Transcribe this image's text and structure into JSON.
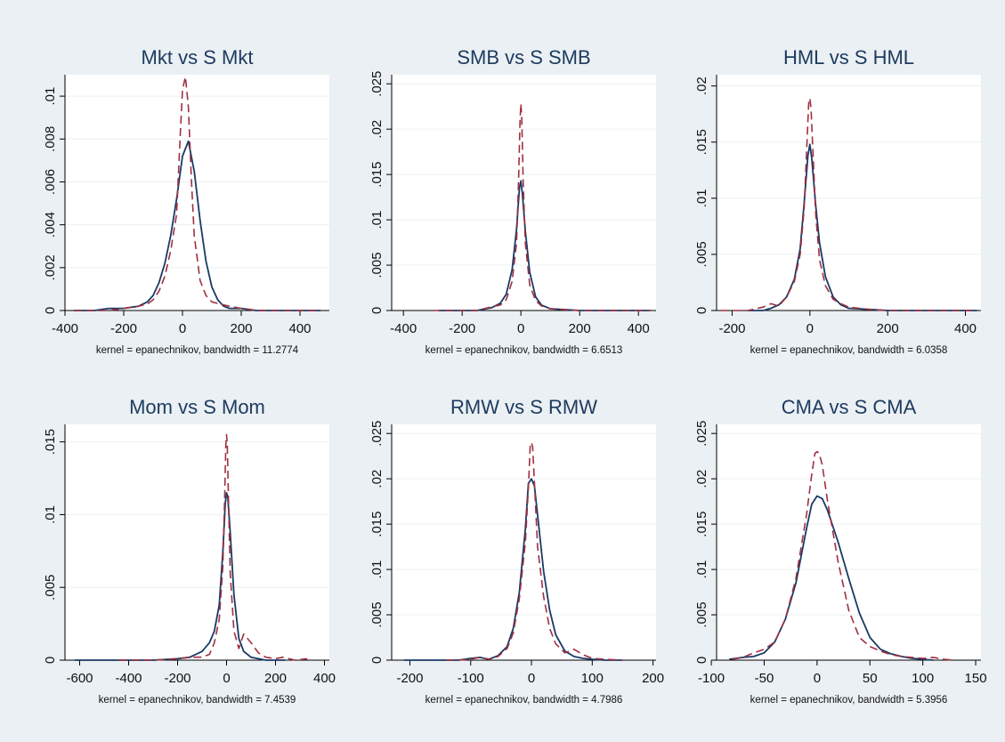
{
  "colors": {
    "background": "#eaf0f3",
    "plot_background": "#ffffff",
    "title": "#1e3a5f",
    "solid_series": "#1a3a66",
    "dashed_series": "#a03040",
    "grid": "#eaf0f3"
  },
  "chart_data": [
    {
      "type": "line",
      "title": "Mkt vs S Mkt",
      "note": "kernel = epanechnikov, bandwidth = 11.2774",
      "xlim": [
        -400,
        500
      ],
      "ylim": [
        0,
        0.011
      ],
      "xticks": [
        -400,
        -200,
        0,
        200,
        400
      ],
      "xtick_labels": [
        "-400",
        "-200",
        "0",
        "200",
        "400"
      ],
      "yticks": [
        0,
        0.002,
        0.004,
        0.006,
        0.008,
        0.01
      ],
      "ytick_labels": [
        "0",
        ".002",
        ".004",
        ".006",
        ".008",
        ".01"
      ],
      "grid": true,
      "series": [
        {
          "style": "solid",
          "x": [
            -370,
            -300,
            -250,
            -200,
            -150,
            -120,
            -100,
            -80,
            -60,
            -40,
            -20,
            0,
            20,
            40,
            60,
            80,
            100,
            120,
            140,
            160,
            200,
            250,
            300,
            350,
            400,
            470
          ],
          "y": [
            0,
            0,
            0.0001,
            0.0001,
            0.0002,
            0.0004,
            0.0007,
            0.0013,
            0.0022,
            0.0035,
            0.0052,
            0.0072,
            0.0079,
            0.0065,
            0.0042,
            0.0023,
            0.0011,
            0.0005,
            0.0002,
            0.0001,
            0.0001,
            0,
            0,
            0,
            0,
            0
          ]
        },
        {
          "style": "dashed",
          "x": [
            -370,
            -300,
            -250,
            -200,
            -150,
            -120,
            -100,
            -80,
            -60,
            -40,
            -20,
            -10,
            0,
            10,
            20,
            30,
            40,
            60,
            80,
            100,
            130,
            160,
            200,
            260,
            300,
            350,
            400,
            470
          ],
          "y": [
            0,
            0,
            0,
            0.0001,
            0.0002,
            0.0003,
            0.0005,
            0.0009,
            0.0016,
            0.0028,
            0.0045,
            0.0075,
            0.0103,
            0.0109,
            0.0095,
            0.0062,
            0.0035,
            0.0014,
            0.0007,
            0.0004,
            0.0003,
            0.0002,
            0.0001,
            0,
            0,
            0,
            0,
            0
          ]
        }
      ]
    },
    {
      "type": "line",
      "title": "SMB vs S SMB",
      "note": "kernel = epanechnikov, bandwidth = 6.6513",
      "xlim": [
        -440,
        460
      ],
      "ylim": [
        0,
        0.026
      ],
      "xticks": [
        -400,
        -200,
        0,
        200,
        400
      ],
      "xtick_labels": [
        "-400",
        "-200",
        "0",
        "200",
        "400"
      ],
      "yticks": [
        0,
        0.005,
        0.01,
        0.015,
        0.02,
        0.025
      ],
      "ytick_labels": [
        "0",
        ".005",
        ".01",
        ".015",
        ".02",
        ".025"
      ],
      "grid": true,
      "series": [
        {
          "style": "solid",
          "x": [
            -280,
            -200,
            -150,
            -100,
            -70,
            -50,
            -30,
            -15,
            -5,
            0,
            5,
            15,
            30,
            50,
            70,
            100,
            150,
            200,
            300,
            440
          ],
          "y": [
            0,
            0,
            0,
            0.0003,
            0.0008,
            0.0018,
            0.0045,
            0.009,
            0.0135,
            0.0143,
            0.0128,
            0.0088,
            0.0042,
            0.0015,
            0.0006,
            0.0002,
            0.0001,
            0,
            0,
            0
          ]
        },
        {
          "style": "dashed",
          "x": [
            -300,
            -200,
            -150,
            -100,
            -70,
            -50,
            -30,
            -15,
            -8,
            -3,
            0,
            3,
            8,
            15,
            30,
            50,
            70,
            100,
            150,
            200,
            300,
            440
          ],
          "y": [
            0,
            0,
            0,
            0.0004,
            0.0006,
            0.0012,
            0.0032,
            0.0075,
            0.0145,
            0.021,
            0.0228,
            0.021,
            0.014,
            0.0075,
            0.0028,
            0.0011,
            0.0005,
            0.0002,
            0.0001,
            0,
            0,
            0
          ]
        }
      ]
    },
    {
      "type": "line",
      "title": "HML vs S HML",
      "note": "kernel = epanechnikov, bandwidth = 6.0358",
      "xlim": [
        -240,
        440
      ],
      "ylim": [
        0,
        0.021
      ],
      "xticks": [
        -200,
        0,
        200,
        400
      ],
      "xtick_labels": [
        "-200",
        "0",
        "200",
        "400"
      ],
      "yticks": [
        0,
        0.005,
        0.01,
        0.015,
        0.02
      ],
      "ytick_labels": [
        "0",
        ".005",
        ".01",
        ".015",
        ".02"
      ],
      "grid": true,
      "series": [
        {
          "style": "solid",
          "x": [
            -160,
            -120,
            -100,
            -80,
            -60,
            -40,
            -25,
            -15,
            -5,
            0,
            5,
            15,
            25,
            40,
            60,
            80,
            100,
            150,
            200,
            300,
            430
          ],
          "y": [
            0,
            0,
            0.0002,
            0.0005,
            0.0012,
            0.0028,
            0.0055,
            0.0095,
            0.0138,
            0.0148,
            0.0135,
            0.0093,
            0.006,
            0.003,
            0.0012,
            0.0005,
            0.0002,
            0.0001,
            0,
            0,
            0
          ]
        },
        {
          "style": "dashed",
          "x": [
            -230,
            -160,
            -120,
            -100,
            -80,
            -60,
            -40,
            -25,
            -15,
            -8,
            -3,
            0,
            3,
            8,
            15,
            25,
            40,
            60,
            80,
            100,
            150,
            200,
            300,
            430
          ],
          "y": [
            0,
            0,
            0.0003,
            0.0006,
            0.0004,
            0.0012,
            0.0026,
            0.005,
            0.009,
            0.0145,
            0.0185,
            0.0189,
            0.018,
            0.014,
            0.0085,
            0.0045,
            0.0022,
            0.001,
            0.0006,
            0.0003,
            0.0001,
            0,
            0,
            0
          ]
        }
      ]
    },
    {
      "type": "line",
      "title": "Mom vs S Mom",
      "note": "kernel = epanechnikov, bandwidth = 7.4539",
      "xlim": [
        -660,
        420
      ],
      "ylim": [
        0,
        0.0162
      ],
      "xticks": [
        -600,
        -400,
        -200,
        0,
        200,
        400
      ],
      "xtick_labels": [
        "-600",
        "-400",
        "-200",
        "0",
        "200",
        "400"
      ],
      "yticks": [
        0,
        0.005,
        0.01,
        0.015
      ],
      "ytick_labels": [
        "0",
        ".005",
        ".01",
        ".015"
      ],
      "grid": true,
      "series": [
        {
          "style": "solid",
          "x": [
            -620,
            -500,
            -400,
            -300,
            -200,
            -150,
            -100,
            -70,
            -50,
            -30,
            -15,
            -5,
            0,
            5,
            15,
            30,
            50,
            70,
            100,
            130,
            160,
            200,
            240
          ],
          "y": [
            0,
            0,
            0,
            0,
            0.0001,
            0.0002,
            0.0006,
            0.0012,
            0.002,
            0.0038,
            0.0075,
            0.0108,
            0.0115,
            0.0112,
            0.0088,
            0.0045,
            0.0015,
            0.0006,
            0.0002,
            0.0001,
            0,
            0,
            0
          ]
        },
        {
          "style": "dashed",
          "x": [
            -440,
            -300,
            -200,
            -150,
            -100,
            -70,
            -50,
            -30,
            -15,
            -8,
            -3,
            0,
            3,
            8,
            15,
            30,
            50,
            70,
            100,
            130,
            160,
            200,
            230,
            280,
            330
          ],
          "y": [
            0,
            0,
            0.0001,
            0.0002,
            0.0002,
            0.0004,
            0.0012,
            0.0028,
            0.0065,
            0.011,
            0.0148,
            0.0155,
            0.0148,
            0.011,
            0.006,
            0.002,
            0.0008,
            0.0018,
            0.0012,
            0.0005,
            0.0002,
            0.0001,
            0.0002,
            0,
            0.0001
          ]
        }
      ]
    },
    {
      "type": "line",
      "title": "RMW vs S RMW",
      "note": "kernel = epanechnikov, bandwidth = 4.7986",
      "xlim": [
        -230,
        205
      ],
      "ylim": [
        0,
        0.026
      ],
      "xticks": [
        -200,
        -100,
        0,
        100,
        200
      ],
      "xtick_labels": [
        "-200",
        "-100",
        "0",
        "100",
        "200"
      ],
      "yticks": [
        0,
        0.005,
        0.01,
        0.015,
        0.02,
        0.025
      ],
      "ytick_labels": [
        "0",
        ".005",
        ".01",
        ".015",
        ".02",
        ".025"
      ],
      "grid": true,
      "series": [
        {
          "style": "solid",
          "x": [
            -210,
            -150,
            -120,
            -100,
            -85,
            -70,
            -55,
            -40,
            -30,
            -20,
            -10,
            -5,
            0,
            5,
            10,
            20,
            30,
            40,
            55,
            70,
            85,
            100,
            120,
            150
          ],
          "y": [
            0,
            0,
            0,
            0.0002,
            0.0003,
            0.0001,
            0.0005,
            0.0015,
            0.0035,
            0.0075,
            0.0145,
            0.0195,
            0.02,
            0.0192,
            0.016,
            0.0098,
            0.0055,
            0.0028,
            0.001,
            0.0004,
            0.0002,
            0.0001,
            0,
            0
          ]
        },
        {
          "style": "dashed",
          "x": [
            -140,
            -120,
            -100,
            -85,
            -70,
            -55,
            -40,
            -30,
            -20,
            -10,
            -5,
            -2,
            0,
            2,
            5,
            10,
            20,
            30,
            40,
            55,
            70,
            85,
            100,
            120,
            150
          ],
          "y": [
            0,
            0,
            0.0001,
            0.0003,
            0.0001,
            0.0004,
            0.0013,
            0.003,
            0.0068,
            0.013,
            0.019,
            0.0238,
            0.024,
            0.0235,
            0.0195,
            0.0125,
            0.007,
            0.0035,
            0.0018,
            0.0008,
            0.0012,
            0.0006,
            0.0002,
            0.0001,
            0
          ]
        }
      ]
    },
    {
      "type": "line",
      "title": "CMA vs S CMA",
      "note": "kernel = epanechnikov, bandwidth = 5.3956",
      "xlim": [
        -95,
        155
      ],
      "ylim": [
        0,
        0.026
      ],
      "xticks": [
        -100,
        -50,
        0,
        50,
        100,
        150
      ],
      "xtick_labels": [
        "-100",
        "-50",
        "0",
        "50",
        "100",
        "150"
      ],
      "yticks": [
        0,
        0.005,
        0.01,
        0.015,
        0.02,
        0.025
      ],
      "ytick_labels": [
        "0",
        ".005",
        ".01",
        ".015",
        ".02",
        ".025"
      ],
      "grid": true,
      "series": [
        {
          "style": "solid",
          "x": [
            -83,
            -70,
            -60,
            -50,
            -40,
            -30,
            -20,
            -10,
            -5,
            0,
            5,
            10,
            20,
            30,
            40,
            50,
            60,
            70,
            80,
            90,
            100,
            110
          ],
          "y": [
            0.0001,
            0.0003,
            0.0004,
            0.0008,
            0.002,
            0.0045,
            0.0085,
            0.0145,
            0.0172,
            0.0181,
            0.0178,
            0.0165,
            0.013,
            0.009,
            0.0052,
            0.0025,
            0.0012,
            0.0007,
            0.0004,
            0.0002,
            0.0001,
            0
          ]
        },
        {
          "style": "dashed",
          "x": [
            -80,
            -70,
            -60,
            -50,
            -40,
            -30,
            -20,
            -10,
            -5,
            -2,
            0,
            2,
            5,
            10,
            20,
            30,
            40,
            50,
            60,
            70,
            80,
            90,
            100,
            110,
            120,
            130
          ],
          "y": [
            0.0001,
            0.0003,
            0.0008,
            0.0012,
            0.002,
            0.0045,
            0.009,
            0.016,
            0.0205,
            0.0228,
            0.023,
            0.0228,
            0.0215,
            0.0175,
            0.0108,
            0.0055,
            0.0025,
            0.0015,
            0.001,
            0.0006,
            0.0004,
            0.0003,
            0.0002,
            0.0003,
            0.0001,
            0
          ]
        }
      ]
    }
  ]
}
